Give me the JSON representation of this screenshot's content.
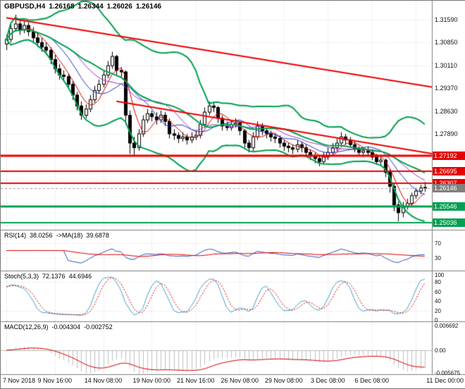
{
  "header": {
    "symbol": "GBPUSD,H4",
    "open": "1.26168",
    "high": "1.26344",
    "low": "1.26026",
    "close": "1.26146"
  },
  "panes": {
    "rsi": {
      "name": "RSI(14)",
      "value": "38.0256",
      "ma_name": "->MA(18)",
      "ma_value": "39.6878"
    },
    "stoch": {
      "name": "Stoch(5,3,3)",
      "value": "72.1376",
      "signal_value": "44.6946"
    },
    "macd": {
      "name": "MACD(12,26,9)",
      "value": "-0.004304",
      "signal_value": "-0.002752"
    }
  },
  "chart_data": {
    "type": "candlestick",
    "symbol": "GBPUSD",
    "timeframe": "H4",
    "ylim": [
      1.248,
      1.322
    ],
    "current_price": 1.26146,
    "grid": {
      "price_start": 1.3159,
      "price_step": 0.0074,
      "lines": 10
    },
    "y_axis": [
      {
        "label": "1.31590",
        "price": 1.3159
      },
      {
        "label": "1.30850",
        "price": 1.3085
      },
      {
        "label": "1.30110",
        "price": 1.3011
      },
      {
        "label": "1.29370",
        "price": 1.2937
      },
      {
        "label": "1.28630",
        "price": 1.2863
      },
      {
        "label": "1.27890",
        "price": 1.2789
      }
    ],
    "x_axis": [
      {
        "label": "7 Nov 2018",
        "i": 0
      },
      {
        "label": "9 Nov 16:00",
        "i": 11
      },
      {
        "label": "14 Nov 08:00",
        "i": 22
      },
      {
        "label": "19 Nov 00:00",
        "i": 33
      },
      {
        "label": "21 Nov 16:00",
        "i": 43
      },
      {
        "label": "26 Nov 08:00",
        "i": 53
      },
      {
        "label": "29 Nov 08:00",
        "i": 63
      },
      {
        "label": "3 Dec 08:00",
        "i": 73
      },
      {
        "label": "6 Dec 08:00",
        "i": 83
      },
      {
        "label": "11 Dec 00:00",
        "i": 93
      }
    ],
    "price_markers": [
      {
        "text": "1.27192",
        "price": 1.27192,
        "color": "#e60000",
        "kind": "resistance"
      },
      {
        "text": "1.26695",
        "price": 1.26695,
        "color": "#e60000",
        "kind": "resistance"
      },
      {
        "text": "1.26307",
        "price": 1.26307,
        "color": "#e60000",
        "kind": "resistance"
      },
      {
        "text": "1.26146",
        "price": 1.26146,
        "color": "#808080",
        "kind": "current"
      },
      {
        "text": "1.25546",
        "price": 1.25546,
        "color": "#00a14e",
        "kind": "support"
      },
      {
        "text": "1.25036",
        "price": 1.25036,
        "color": "#00a14e",
        "kind": "support"
      }
    ],
    "hlines": [
      {
        "price": 1.27192,
        "color": "#ee0000",
        "lw": 3
      },
      {
        "price": 1.26695,
        "color": "#ee0000",
        "lw": 2
      },
      {
        "price": 1.26307,
        "color": "#ee0000",
        "lw": 2
      },
      {
        "price": 1.25546,
        "color": "#00a14e",
        "lw": 3
      },
      {
        "price": 1.25036,
        "color": "#00a14e",
        "lw": 2
      }
    ],
    "trendlines": [
      {
        "i1": 0,
        "p1": 1.3165,
        "i2": 95,
        "p2": 1.2945,
        "color": "#ee0000",
        "lw": 2
      },
      {
        "i1": 25,
        "p1": 1.2895,
        "i2": 95,
        "p2": 1.273,
        "color": "#ee0000",
        "lw": 2
      }
    ],
    "overlays": {
      "bollinger": {
        "period": 20,
        "deviation": 2,
        "color": "#00a14e",
        "lw": 2
      },
      "ma": [
        {
          "period": 5,
          "type": "sma",
          "color": "#d80000"
        },
        {
          "period": 10,
          "type": "sma",
          "color": "#2233cc"
        },
        {
          "period": 16,
          "type": "sma",
          "color": "#9933cc"
        }
      ]
    },
    "candle_colors": {
      "up_fill": "#ffffff",
      "down_fill": "#000000",
      "outline": "#000000"
    },
    "indicators": {
      "rsi": {
        "period": 14,
        "ma_period": 18,
        "current": 38.0256,
        "ma_current": 39.6878,
        "range": [
          0,
          100
        ],
        "levels": [
          {
            "label": "70",
            "v": 70
          },
          {
            "label": "30",
            "v": 30
          }
        ],
        "colors": {
          "main": "#3355bb",
          "ma": "#d80000"
        }
      },
      "stoch": {
        "k": 5,
        "d": 3,
        "slowing": 3,
        "current_k": 72.1376,
        "current_d": 44.6946,
        "range": [
          0,
          100
        ],
        "levels": [
          80,
          20
        ],
        "axis": [
          {
            "label": "100",
            "v": 100
          },
          {
            "label": "80",
            "v": 80
          },
          {
            "label": "60",
            "v": 60
          },
          {
            "label": "40",
            "v": 40
          },
          {
            "label": "20",
            "v": 20
          },
          {
            "label": "0",
            "v": 0
          }
        ],
        "colors": {
          "main": "#3fa3d5",
          "signal": "#d80000"
        }
      },
      "macd": {
        "fast": 12,
        "slow": 26,
        "signal": 9,
        "current": -0.004304,
        "current_signal": -0.002752,
        "ylim": [
          -0.005675,
          0.006692
        ],
        "axis": [
          {
            "label": "0.006692",
            "v": 0.006692
          },
          {
            "label": "0.00",
            "v": 0
          },
          {
            "label": "-0.005675",
            "v": -0.005675
          }
        ],
        "colors": {
          "hist": "#c0c0c0",
          "signal": "#d80000"
        }
      }
    },
    "candles": [
      [
        1.308,
        1.311,
        1.306,
        1.3095
      ],
      [
        1.3095,
        1.315,
        1.3085,
        1.313
      ],
      [
        1.313,
        1.3175,
        1.312,
        1.3145
      ],
      [
        1.3145,
        1.316,
        1.311,
        1.3125
      ],
      [
        1.3125,
        1.3155,
        1.3115,
        1.314
      ],
      [
        1.314,
        1.315,
        1.3105,
        1.312
      ],
      [
        1.312,
        1.3135,
        1.3085,
        1.31
      ],
      [
        1.31,
        1.3115,
        1.307,
        1.3085
      ],
      [
        1.3085,
        1.31,
        1.3055,
        1.307
      ],
      [
        1.307,
        1.3085,
        1.3045,
        1.306
      ],
      [
        1.306,
        1.307,
        1.3015,
        1.303
      ],
      [
        1.303,
        1.3045,
        1.2985,
        1.3
      ],
      [
        1.3,
        1.3015,
        1.2965,
        1.298
      ],
      [
        1.298,
        1.2995,
        1.296,
        1.2975
      ],
      [
        1.2975,
        1.2985,
        1.2935,
        1.295
      ],
      [
        1.295,
        1.296,
        1.29,
        1.2915
      ],
      [
        1.2915,
        1.2925,
        1.2865,
        1.288
      ],
      [
        1.288,
        1.2895,
        1.2835,
        1.285
      ],
      [
        1.285,
        1.2885,
        1.284,
        1.287
      ],
      [
        1.287,
        1.2915,
        1.286,
        1.29
      ],
      [
        1.29,
        1.2945,
        1.289,
        1.293
      ],
      [
        1.293,
        1.2965,
        1.292,
        1.295
      ],
      [
        1.295,
        1.2995,
        1.294,
        1.298
      ],
      [
        1.298,
        1.3025,
        1.297,
        1.301
      ],
      [
        1.301,
        1.3055,
        1.3,
        1.304
      ],
      [
        1.304,
        1.3045,
        1.298,
        1.2995
      ],
      [
        1.2995,
        1.3005,
        1.297,
        1.299
      ],
      [
        1.299,
        1.2995,
        1.282,
        1.285
      ],
      [
        1.285,
        1.2865,
        1.2725,
        1.276
      ],
      [
        1.276,
        1.278,
        1.272,
        1.2745
      ],
      [
        1.2745,
        1.2805,
        1.2735,
        1.279
      ],
      [
        1.279,
        1.285,
        1.278,
        1.2835
      ],
      [
        1.2835,
        1.287,
        1.2825,
        1.2855
      ],
      [
        1.2855,
        1.2865,
        1.283,
        1.2845
      ],
      [
        1.2845,
        1.286,
        1.282,
        1.2835
      ],
      [
        1.2835,
        1.2865,
        1.2825,
        1.285
      ],
      [
        1.285,
        1.286,
        1.2815,
        1.283
      ],
      [
        1.283,
        1.284,
        1.2775,
        1.279
      ],
      [
        1.279,
        1.2805,
        1.277,
        1.2785
      ],
      [
        1.2785,
        1.2795,
        1.276,
        1.2775
      ],
      [
        1.2775,
        1.2795,
        1.2765,
        1.278
      ],
      [
        1.278,
        1.279,
        1.2755,
        1.277
      ],
      [
        1.277,
        1.2795,
        1.276,
        1.278
      ],
      [
        1.278,
        1.28,
        1.277,
        1.2785
      ],
      [
        1.2785,
        1.2835,
        1.2775,
        1.282
      ],
      [
        1.282,
        1.2875,
        1.281,
        1.286
      ],
      [
        1.286,
        1.2895,
        1.285,
        1.288
      ],
      [
        1.288,
        1.289,
        1.286,
        1.2875
      ],
      [
        1.2875,
        1.288,
        1.2825,
        1.284
      ],
      [
        1.284,
        1.285,
        1.28,
        1.2815
      ],
      [
        1.2815,
        1.283,
        1.28,
        1.281
      ],
      [
        1.281,
        1.2835,
        1.28,
        1.282
      ],
      [
        1.282,
        1.284,
        1.281,
        1.2825
      ],
      [
        1.2825,
        1.283,
        1.2785,
        1.28
      ],
      [
        1.28,
        1.2805,
        1.2745,
        1.276
      ],
      [
        1.276,
        1.277,
        1.273,
        1.2745
      ],
      [
        1.2745,
        1.2795,
        1.2735,
        1.278
      ],
      [
        1.278,
        1.283,
        1.277,
        1.2815
      ],
      [
        1.2815,
        1.2825,
        1.2785,
        1.28
      ],
      [
        1.28,
        1.281,
        1.2775,
        1.279
      ],
      [
        1.279,
        1.28,
        1.2765,
        1.278
      ],
      [
        1.278,
        1.279,
        1.276,
        1.2775
      ],
      [
        1.2775,
        1.2785,
        1.2745,
        1.276
      ],
      [
        1.276,
        1.277,
        1.2735,
        1.275
      ],
      [
        1.275,
        1.276,
        1.273,
        1.2745
      ],
      [
        1.2745,
        1.2755,
        1.2725,
        1.274
      ],
      [
        1.274,
        1.277,
        1.273,
        1.2755
      ],
      [
        1.2755,
        1.2765,
        1.273,
        1.2745
      ],
      [
        1.2745,
        1.2755,
        1.2715,
        1.273
      ],
      [
        1.273,
        1.274,
        1.2705,
        1.272
      ],
      [
        1.272,
        1.273,
        1.2695,
        1.271
      ],
      [
        1.271,
        1.272,
        1.2685,
        1.27
      ],
      [
        1.27,
        1.273,
        1.269,
        1.2715
      ],
      [
        1.2715,
        1.2745,
        1.2705,
        1.273
      ],
      [
        1.273,
        1.276,
        1.272,
        1.2745
      ],
      [
        1.2745,
        1.2775,
        1.2735,
        1.276
      ],
      [
        1.276,
        1.2795,
        1.275,
        1.278
      ],
      [
        1.278,
        1.279,
        1.2755,
        1.277
      ],
      [
        1.277,
        1.278,
        1.2745,
        1.2755
      ],
      [
        1.2755,
        1.2765,
        1.273,
        1.274
      ],
      [
        1.274,
        1.275,
        1.272,
        1.273
      ],
      [
        1.273,
        1.2745,
        1.2715,
        1.2735
      ],
      [
        1.2735,
        1.275,
        1.272,
        1.273
      ],
      [
        1.273,
        1.274,
        1.2705,
        1.2715
      ],
      [
        1.2715,
        1.2725,
        1.269,
        1.27
      ],
      [
        1.27,
        1.2715,
        1.2685,
        1.2705
      ],
      [
        1.2705,
        1.271,
        1.265,
        1.2665
      ],
      [
        1.2665,
        1.2675,
        1.26,
        1.262
      ],
      [
        1.262,
        1.263,
        1.254,
        1.256
      ],
      [
        1.256,
        1.257,
        1.2507,
        1.2535
      ],
      [
        1.2535,
        1.257,
        1.252,
        1.2555
      ],
      [
        1.2555,
        1.258,
        1.2545,
        1.2565
      ],
      [
        1.2565,
        1.26,
        1.2555,
        1.259
      ],
      [
        1.259,
        1.2615,
        1.258,
        1.2605
      ],
      [
        1.2605,
        1.2625,
        1.2595,
        1.2615
      ],
      [
        1.26168,
        1.26344,
        1.26026,
        1.26146
      ]
    ]
  }
}
